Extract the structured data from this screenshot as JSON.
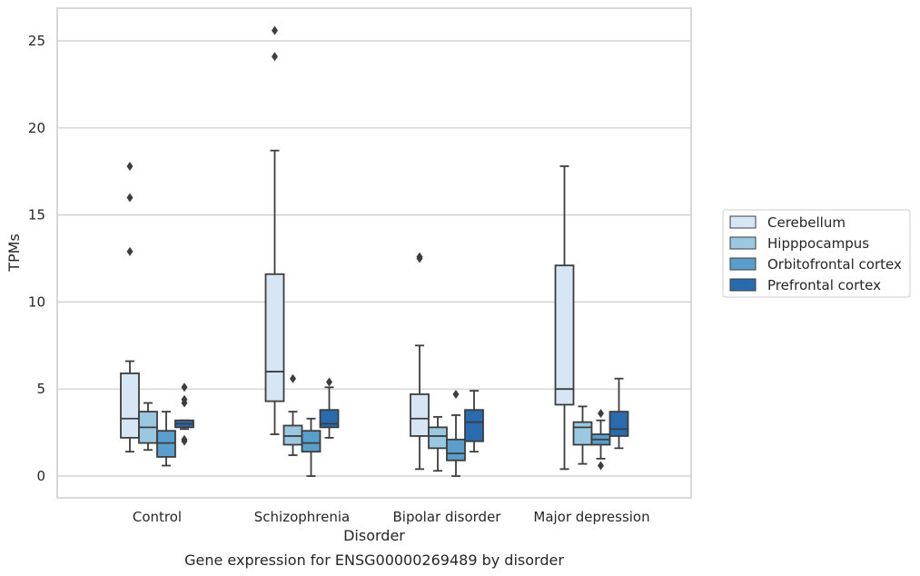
{
  "chart_data": {
    "type": "box",
    "caption": "Gene expression for ENSG00000269489 by disorder",
    "xlabel": "Disorder",
    "ylabel": "TPMs",
    "ylim": [
      -1.2,
      26.8
    ],
    "yticks": [
      0,
      5,
      10,
      15,
      20,
      25
    ],
    "grid": "horizontal",
    "legend_position": "right",
    "categories": [
      "Control",
      "Schizophrenia",
      "Bipolar disorder",
      "Major depression"
    ],
    "series": [
      {
        "name": "Cerebellum",
        "color": "#d6e6f4",
        "boxes": [
          {
            "whislo": 1.4,
            "q1": 2.2,
            "med": 3.3,
            "q3": 5.9,
            "whishi": 6.6,
            "fliers": [
              12.9,
              16.0,
              17.8
            ]
          },
          {
            "whislo": 2.4,
            "q1": 4.3,
            "med": 6.0,
            "q3": 11.6,
            "whishi": 18.7,
            "fliers": [
              24.1,
              25.6
            ]
          },
          {
            "whislo": 0.4,
            "q1": 2.3,
            "med": 3.3,
            "q3": 4.7,
            "whishi": 7.5,
            "fliers": [
              12.5,
              12.6
            ]
          },
          {
            "whislo": 0.4,
            "q1": 4.1,
            "med": 5.0,
            "q3": 12.1,
            "whishi": 17.8,
            "fliers": []
          }
        ]
      },
      {
        "name": "Hipppocampus",
        "color": "#9ac8e0",
        "boxes": [
          {
            "whislo": 1.5,
            "q1": 1.9,
            "med": 2.8,
            "q3": 3.7,
            "whishi": 4.2,
            "fliers": []
          },
          {
            "whislo": 1.2,
            "q1": 1.8,
            "med": 2.3,
            "q3": 2.9,
            "whishi": 3.7,
            "fliers": [
              5.6
            ]
          },
          {
            "whislo": 0.3,
            "q1": 1.6,
            "med": 2.3,
            "q3": 2.8,
            "whishi": 3.4,
            "fliers": []
          },
          {
            "whislo": 0.7,
            "q1": 1.8,
            "med": 2.8,
            "q3": 3.1,
            "whishi": 4.0,
            "fliers": []
          }
        ]
      },
      {
        "name": "Orbitofrontal cortex",
        "color": "#5a9ecb",
        "boxes": [
          {
            "whislo": 0.6,
            "q1": 1.1,
            "med": 1.9,
            "q3": 2.6,
            "whishi": 3.7,
            "fliers": []
          },
          {
            "whislo": 0.0,
            "q1": 1.4,
            "med": 1.9,
            "q3": 2.6,
            "whishi": 3.3,
            "fliers": []
          },
          {
            "whislo": 0.0,
            "q1": 0.9,
            "med": 1.3,
            "q3": 2.1,
            "whishi": 3.5,
            "fliers": [
              4.7
            ]
          },
          {
            "whislo": 1.0,
            "q1": 1.8,
            "med": 2.1,
            "q3": 2.4,
            "whishi": 3.2,
            "fliers": [
              0.6,
              3.6
            ]
          }
        ]
      },
      {
        "name": "Prefrontal cortex",
        "color": "#2a6bb0",
        "boxes": [
          {
            "whislo": 2.7,
            "q1": 2.8,
            "med": 3.0,
            "q3": 3.2,
            "whishi": 3.2,
            "fliers": [
              2.0,
              2.1,
              4.2,
              4.4,
              5.1
            ]
          },
          {
            "whislo": 2.2,
            "q1": 2.8,
            "med": 3.0,
            "q3": 3.8,
            "whishi": 5.1,
            "fliers": [
              5.4
            ]
          },
          {
            "whislo": 1.4,
            "q1": 2.0,
            "med": 3.1,
            "q3": 3.8,
            "whishi": 4.9,
            "fliers": []
          },
          {
            "whislo": 1.6,
            "q1": 2.3,
            "med": 2.7,
            "q3": 3.7,
            "whishi": 5.6,
            "fliers": []
          }
        ]
      }
    ]
  }
}
